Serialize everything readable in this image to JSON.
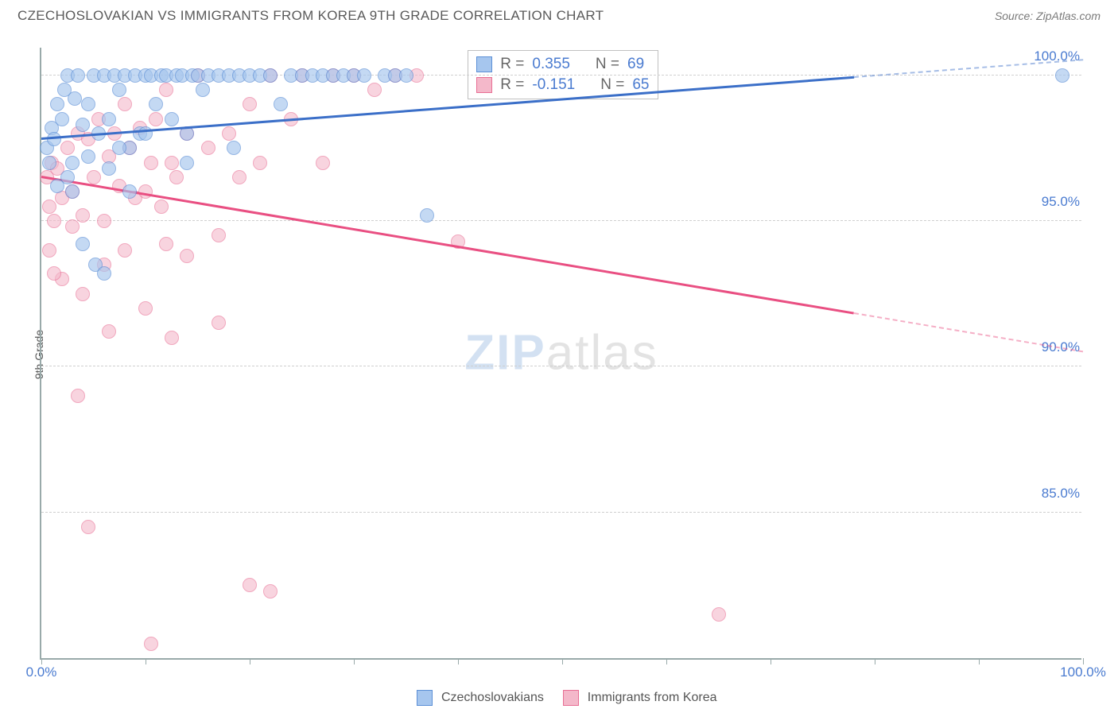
{
  "title": "CZECHOSLOVAKIAN VS IMMIGRANTS FROM KOREA 9TH GRADE CORRELATION CHART",
  "source": "Source: ZipAtlas.com",
  "ylabel": "9th Grade",
  "watermark_a": "ZIP",
  "watermark_b": "atlas",
  "chart": {
    "type": "scatter",
    "xlim": [
      0,
      100
    ],
    "ylim": [
      80,
      101
    ],
    "x_ticks": [
      0,
      10,
      20,
      30,
      40,
      50,
      60,
      70,
      80,
      90,
      100
    ],
    "x_tick_labels": {
      "0": "0.0%",
      "100": "100.0%"
    },
    "y_ticks": [
      85,
      90,
      95,
      100
    ],
    "y_tick_labels": [
      "85.0%",
      "90.0%",
      "95.0%",
      "100.0%"
    ],
    "grid_color": "#cfcfcf",
    "axis_color": "#9aa0a6",
    "background": "#ffffff",
    "tick_label_color": "#4a7bd0",
    "marker_radius": 9
  },
  "series": {
    "a": {
      "name": "Czechoslovakians",
      "fill": "#a6c6ee",
      "stroke": "#5b8fd6",
      "opacity": 0.65,
      "r_label": "R =",
      "r_value": "0.355",
      "n_label": "N =",
      "n_value": "69",
      "trend": {
        "x1": 0,
        "y1": 97.8,
        "x2": 100,
        "y2": 100.5,
        "color": "#3b6fc8",
        "dash_after_x": 78
      },
      "points": [
        [
          0.5,
          97.5
        ],
        [
          0.8,
          97.0
        ],
        [
          1.0,
          98.2
        ],
        [
          1.2,
          97.8
        ],
        [
          1.5,
          99.0
        ],
        [
          2.0,
          98.5
        ],
        [
          2.2,
          99.5
        ],
        [
          2.5,
          100
        ],
        [
          3.0,
          97.0
        ],
        [
          3.2,
          99.2
        ],
        [
          3.5,
          100
        ],
        [
          4.0,
          98.3
        ],
        [
          4.5,
          99.0
        ],
        [
          5.0,
          100
        ],
        [
          5.2,
          93.5
        ],
        [
          5.5,
          98.0
        ],
        [
          6.0,
          100
        ],
        [
          6.5,
          98.5
        ],
        [
          7.0,
          100
        ],
        [
          7.5,
          99.5
        ],
        [
          8.0,
          100
        ],
        [
          8.5,
          97.5
        ],
        [
          9.0,
          100
        ],
        [
          9.5,
          98.0
        ],
        [
          10.0,
          100
        ],
        [
          10.5,
          100
        ],
        [
          11.0,
          99.0
        ],
        [
          11.5,
          100
        ],
        [
          12.0,
          100
        ],
        [
          12.5,
          98.5
        ],
        [
          13.0,
          100
        ],
        [
          13.5,
          100
        ],
        [
          14.0,
          97.0
        ],
        [
          14.5,
          100
        ],
        [
          15.0,
          100
        ],
        [
          15.5,
          99.5
        ],
        [
          16.0,
          100
        ],
        [
          17.0,
          100
        ],
        [
          18.0,
          100
        ],
        [
          18.5,
          97.5
        ],
        [
          19.0,
          100
        ],
        [
          20.0,
          100
        ],
        [
          21.0,
          100
        ],
        [
          22.0,
          100
        ],
        [
          23.0,
          99.0
        ],
        [
          24.0,
          100
        ],
        [
          25.0,
          100
        ],
        [
          26.0,
          100
        ],
        [
          27.0,
          100
        ],
        [
          28.0,
          100
        ],
        [
          29.0,
          100
        ],
        [
          30.0,
          100
        ],
        [
          31.0,
          100
        ],
        [
          33.0,
          100
        ],
        [
          34.0,
          100
        ],
        [
          35.0,
          100
        ],
        [
          4.0,
          94.2
        ],
        [
          6.0,
          93.2
        ],
        [
          3.0,
          96.0
        ],
        [
          1.5,
          96.2
        ],
        [
          2.5,
          96.5
        ],
        [
          7.5,
          97.5
        ],
        [
          10.0,
          98.0
        ],
        [
          8.5,
          96.0
        ],
        [
          37.0,
          95.2
        ],
        [
          4.5,
          97.2
        ],
        [
          6.5,
          96.8
        ],
        [
          14.0,
          98.0
        ],
        [
          98.0,
          100
        ]
      ]
    },
    "b": {
      "name": "Immigrants from Korea",
      "fill": "#f4b8ca",
      "stroke": "#e86e94",
      "opacity": 0.6,
      "r_label": "R =",
      "r_value": "-0.151",
      "n_label": "N =",
      "n_value": "65",
      "trend": {
        "x1": 0,
        "y1": 96.5,
        "x2": 100,
        "y2": 90.5,
        "color": "#e94f82",
        "dash_after_x": 78
      },
      "points": [
        [
          0.5,
          96.5
        ],
        [
          0.8,
          95.5
        ],
        [
          1.0,
          97.0
        ],
        [
          1.2,
          95.0
        ],
        [
          1.5,
          96.8
        ],
        [
          2.0,
          95.8
        ],
        [
          2.5,
          97.5
        ],
        [
          3.0,
          96.0
        ],
        [
          3.5,
          98.0
        ],
        [
          4.0,
          95.2
        ],
        [
          4.5,
          97.8
        ],
        [
          5.0,
          96.5
        ],
        [
          5.5,
          98.5
        ],
        [
          6.0,
          95.0
        ],
        [
          6.5,
          97.2
        ],
        [
          7.0,
          98.0
        ],
        [
          7.5,
          96.2
        ],
        [
          8.0,
          99.0
        ],
        [
          8.5,
          97.5
        ],
        [
          9.0,
          95.8
        ],
        [
          9.5,
          98.2
        ],
        [
          10.0,
          96.0
        ],
        [
          10.5,
          97.0
        ],
        [
          11.0,
          98.5
        ],
        [
          11.5,
          95.5
        ],
        [
          12.0,
          99.5
        ],
        [
          12.5,
          97.0
        ],
        [
          13.0,
          96.5
        ],
        [
          14.0,
          98.0
        ],
        [
          15.0,
          100
        ],
        [
          16.0,
          97.5
        ],
        [
          17.0,
          94.5
        ],
        [
          18.0,
          98.0
        ],
        [
          19.0,
          96.5
        ],
        [
          20.0,
          99.0
        ],
        [
          21.0,
          97.0
        ],
        [
          22.0,
          100
        ],
        [
          24.0,
          98.5
        ],
        [
          25.0,
          100
        ],
        [
          27.0,
          97.0
        ],
        [
          28.0,
          100
        ],
        [
          30.0,
          100
        ],
        [
          32.0,
          99.5
        ],
        [
          34.0,
          100
        ],
        [
          36.0,
          100
        ],
        [
          2.0,
          93.0
        ],
        [
          3.0,
          94.8
        ],
        [
          4.0,
          92.5
        ],
        [
          6.0,
          93.5
        ],
        [
          8.0,
          94.0
        ],
        [
          12.0,
          94.2
        ],
        [
          14.0,
          93.8
        ],
        [
          3.5,
          89.0
        ],
        [
          6.5,
          91.2
        ],
        [
          10.0,
          92.0
        ],
        [
          12.5,
          91.0
        ],
        [
          17.0,
          91.5
        ],
        [
          4.5,
          84.5
        ],
        [
          20.0,
          82.5
        ],
        [
          22.0,
          82.3
        ],
        [
          40.0,
          94.3
        ],
        [
          65.0,
          81.5
        ],
        [
          10.5,
          80.5
        ],
        [
          0.8,
          94.0
        ],
        [
          1.2,
          93.2
        ]
      ]
    }
  }
}
